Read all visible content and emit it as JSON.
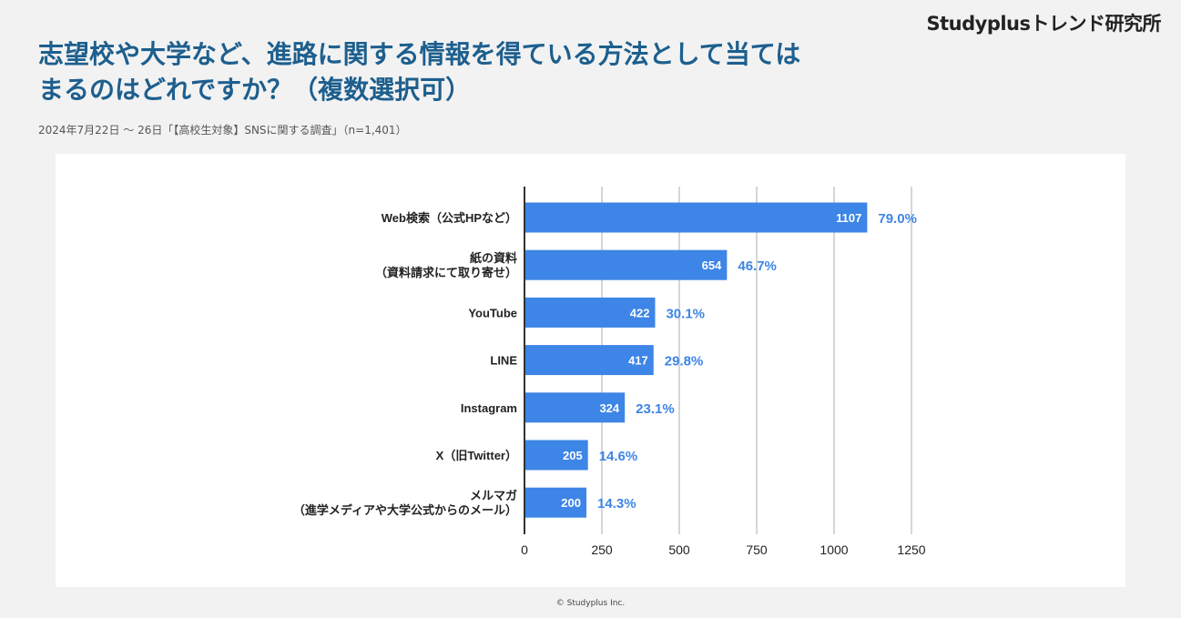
{
  "brand": "Studyplusトレンド研究所",
  "title": "志望校や大学など、進路に関する情報を得ている方法として当てはまるのはどれですか？（複数選択可）",
  "subtitle": "2024年7月22日 〜 26日「【高校生対象】SNSに関する調査」（n=1,401）",
  "footer": "© Studyplus Inc.",
  "colors": {
    "bar": "#3d85e6",
    "pct": "#3d85e6",
    "title": "#1d5f8e",
    "grid": "#c8c8c8",
    "axis": "#333333"
  },
  "chart_data": {
    "type": "bar",
    "orientation": "horizontal",
    "categories": [
      [
        "Web検索（公式HPなど）"
      ],
      [
        "紙の資料",
        "（資料請求にて取り寄せ）"
      ],
      [
        "YouTube"
      ],
      [
        "LINE"
      ],
      [
        "Instagram"
      ],
      [
        "X（旧Twitter）"
      ],
      [
        "メルマガ",
        "（進学メディアや大学公式からのメール）"
      ]
    ],
    "values": [
      1107,
      654,
      422,
      417,
      324,
      205,
      200
    ],
    "percentages": [
      "79.0%",
      "46.7%",
      "30.1%",
      "29.8%",
      "23.1%",
      "14.6%",
      "14.3%"
    ],
    "xlim": [
      0,
      1250
    ],
    "xticks": [
      0,
      250,
      500,
      750,
      1000,
      1250
    ],
    "grid": true,
    "legend": "none"
  }
}
